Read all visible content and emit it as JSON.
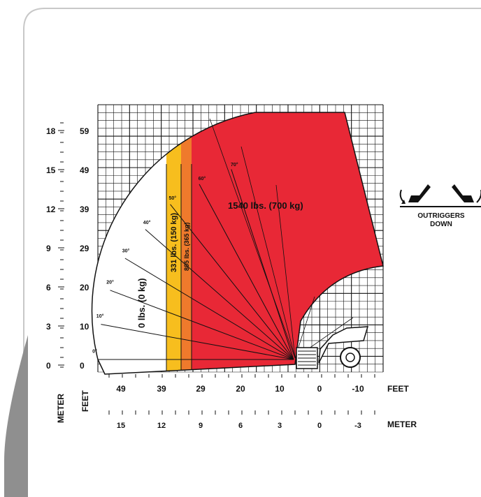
{
  "colors": {
    "no_load": "#ffffff",
    "load_331": "#f7be1e",
    "load_805": "#ef7a2c",
    "load_1540": "#e82836",
    "grid": "#111111",
    "card_border": "#c8c8c8",
    "accent_bar": "#8f8f8f"
  },
  "chart_data": {
    "type": "load-chart",
    "y_axis": {
      "meter_ticks": [
        "18",
        "15",
        "12",
        "9",
        "6",
        "3",
        "0"
      ],
      "feet_ticks": [
        "59",
        "49",
        "39",
        "29",
        "20",
        "10",
        "0"
      ],
      "meter_label": "METER",
      "feet_label": "FEET"
    },
    "x_axis": {
      "feet_ticks": [
        "49",
        "39",
        "29",
        "20",
        "10",
        "0",
        "-10"
      ],
      "meter_ticks": [
        "15",
        "12",
        "9",
        "6",
        "3",
        "0",
        "-3"
      ],
      "feet_label": "FEET",
      "meter_label": "METER"
    },
    "angles": [
      "0°",
      "10°",
      "20°",
      "30°",
      "40°",
      "50°",
      "60°",
      "70°"
    ],
    "zones": [
      {
        "label": "0 lbs. (0 kg)",
        "lbs": 0,
        "kg": 0,
        "color": "#ffffff"
      },
      {
        "label": "331 lbs. (150 kg)",
        "lbs": 331,
        "kg": 150,
        "color": "#f7be1e"
      },
      {
        "label": "805 lbs. (365 kg)",
        "lbs": 805,
        "kg": 365,
        "color": "#ef7a2c"
      },
      {
        "label": "1540 lbs. (700 kg)",
        "lbs": 1540,
        "kg": 700,
        "color": "#e82836"
      }
    ]
  },
  "outriggers": {
    "line1": "OUTRIGGERS",
    "line2": "DOWN"
  }
}
